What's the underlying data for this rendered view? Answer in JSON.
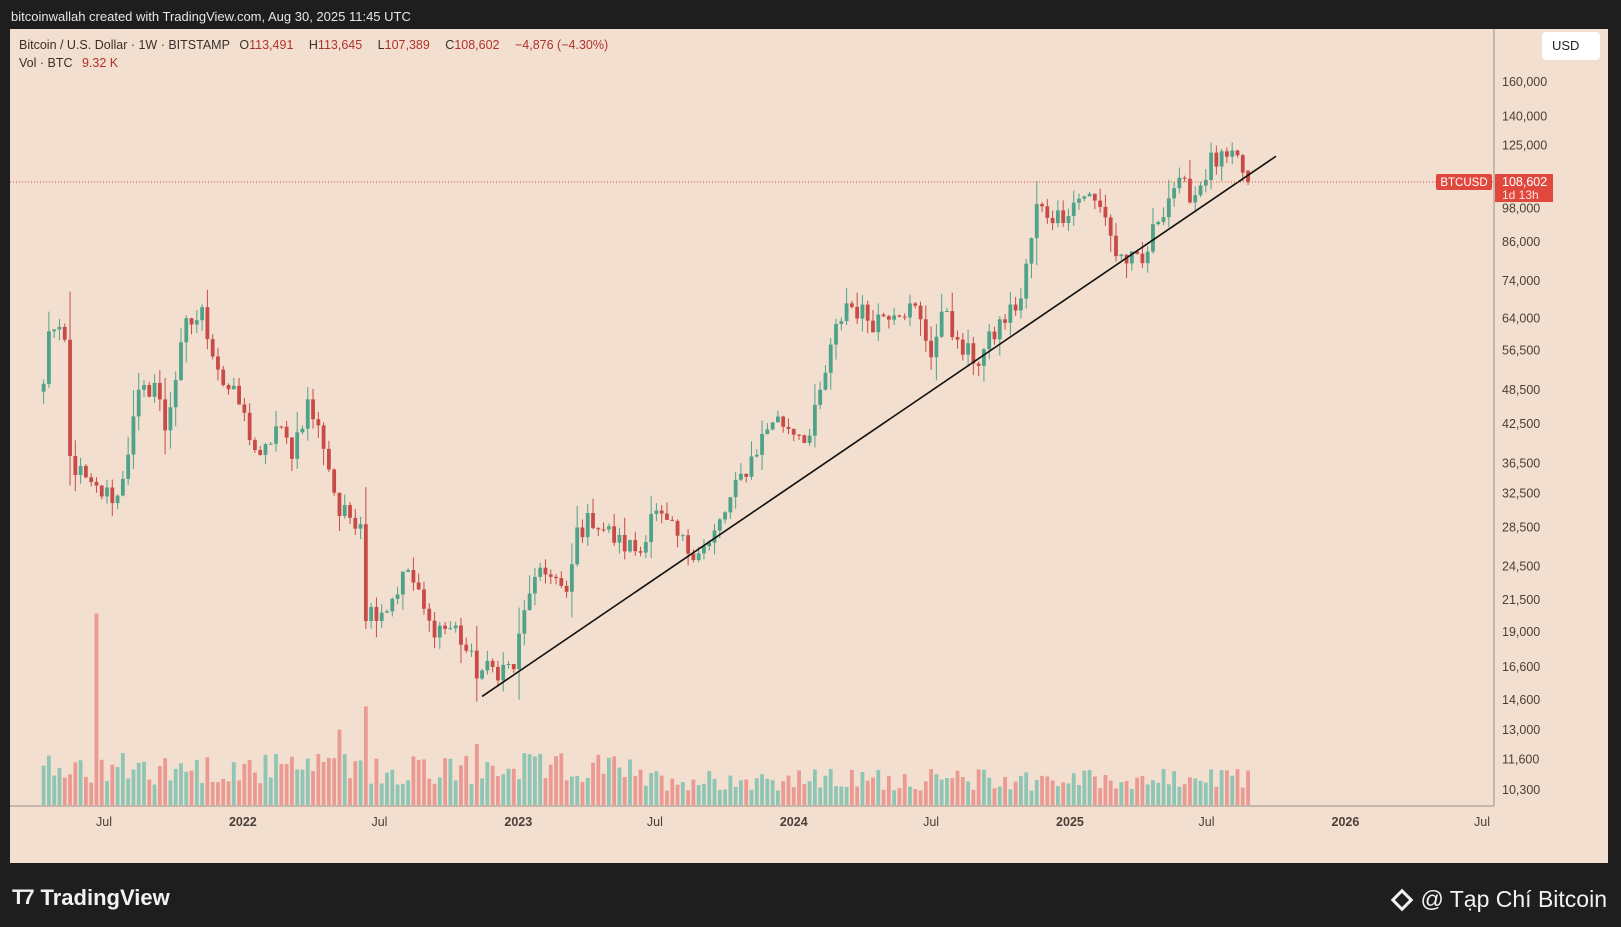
{
  "caption": "bitcoinwallah created with TradingView.com, Aug 30, 2025 11:45 UTC",
  "legend": {
    "symbol": "Bitcoin / U.S. Dollar · 1W · BITSTAMP",
    "open_label": "O",
    "open": "113,491",
    "high_label": "H",
    "high": "113,645",
    "low_label": "L",
    "low": "107,389",
    "close_label": "C",
    "close": "108,602",
    "change": "−4,876 (−4.30%)",
    "vol_label": "Vol · BTC",
    "vol_value": "9.32 K"
  },
  "currency_button": "USD",
  "logo_text": "TradingView",
  "watermark": "@ Tạp Chí Bitcoin",
  "colors": {
    "up": "#4fa38b",
    "down": "#c94b47",
    "vol_up": "#8fc5b4",
    "vol_down": "#eb9a93",
    "background": "#f2dfcf",
    "price_tag": "#e0483e"
  },
  "chart_data": {
    "type": "candlestick",
    "title": "Bitcoin / U.S. Dollar · 1W · BITSTAMP",
    "scale": "log",
    "y_ticks": [
      160000,
      140000,
      125000,
      98000,
      86000,
      74000,
      64000,
      56500,
      48500,
      42500,
      36500,
      32500,
      28500,
      24500,
      21500,
      19000,
      16600,
      14600,
      13000,
      11600,
      10300
    ],
    "y_tick_labels": [
      "160,000",
      "140,000",
      "125,000",
      "98,000",
      "86,000",
      "74,000",
      "64,000",
      "56,500",
      "48,500",
      "42,500",
      "36,500",
      "32,500",
      "28,500",
      "24,500",
      "21,500",
      "19,000",
      "16,600",
      "14,600",
      "13,000",
      "11,600",
      "10,300"
    ],
    "x_ticks": [
      {
        "label": "Jul",
        "date": "2021-07-01"
      },
      {
        "label": "2022",
        "date": "2022-01-01"
      },
      {
        "label": "Jul",
        "date": "2022-07-01"
      },
      {
        "label": "2023",
        "date": "2023-01-01"
      },
      {
        "label": "Jul",
        "date": "2023-07-01"
      },
      {
        "label": "2024",
        "date": "2024-01-01"
      },
      {
        "label": "Jul",
        "date": "2024-07-01"
      },
      {
        "label": "2025",
        "date": "2025-01-01"
      },
      {
        "label": "Jul",
        "date": "2025-07-01"
      },
      {
        "label": "2026",
        "date": "2026-01-01"
      },
      {
        "label": "Jul",
        "date": "2026-07-01"
      }
    ],
    "current_price": {
      "symbol": "BTCUSD",
      "label": "108,602",
      "value": 108602,
      "countdown": "1d 13h"
    },
    "trendline": {
      "start": {
        "date": "2022-11-14",
        "price": 14800
      },
      "end": {
        "date": "2025-10-01",
        "price": 120000
      }
    },
    "anchors": [
      {
        "date": "2021-04-12",
        "price": 49000
      },
      {
        "date": "2021-04-19",
        "price": 62000
      },
      {
        "date": "2021-05-10",
        "price": 58000
      },
      {
        "date": "2021-05-17",
        "price": 37000
      },
      {
        "date": "2021-06-14",
        "price": 33000
      },
      {
        "date": "2021-07-19",
        "price": 32000
      },
      {
        "date": "2021-08-16",
        "price": 47000
      },
      {
        "date": "2021-09-06",
        "price": 50000
      },
      {
        "date": "2021-09-20",
        "price": 42000
      },
      {
        "date": "2021-10-18",
        "price": 62000
      },
      {
        "date": "2021-11-08",
        "price": 65000
      },
      {
        "date": "2021-12-06",
        "price": 50000
      },
      {
        "date": "2021-12-27",
        "price": 46000
      },
      {
        "date": "2022-01-24",
        "price": 36500
      },
      {
        "date": "2022-02-14",
        "price": 42000
      },
      {
        "date": "2022-03-07",
        "price": 38500
      },
      {
        "date": "2022-03-28",
        "price": 46000
      },
      {
        "date": "2022-04-18",
        "price": 39500
      },
      {
        "date": "2022-05-09",
        "price": 30000
      },
      {
        "date": "2022-06-06",
        "price": 29500
      },
      {
        "date": "2022-06-13",
        "price": 20500
      },
      {
        "date": "2022-07-11",
        "price": 21000
      },
      {
        "date": "2022-08-08",
        "price": 24200
      },
      {
        "date": "2022-09-05",
        "price": 19500
      },
      {
        "date": "2022-10-10",
        "price": 19200
      },
      {
        "date": "2022-11-07",
        "price": 16300
      },
      {
        "date": "2022-12-26",
        "price": 16600
      },
      {
        "date": "2023-01-16",
        "price": 22500
      },
      {
        "date": "2023-02-13",
        "price": 24200
      },
      {
        "date": "2023-03-06",
        "price": 21500
      },
      {
        "date": "2023-03-20",
        "price": 28000
      },
      {
        "date": "2023-04-10",
        "price": 29500
      },
      {
        "date": "2023-05-15",
        "price": 26800
      },
      {
        "date": "2023-06-12",
        "price": 26000
      },
      {
        "date": "2023-06-26",
        "price": 30500
      },
      {
        "date": "2023-08-14",
        "price": 26200
      },
      {
        "date": "2023-09-11",
        "price": 26500
      },
      {
        "date": "2023-10-23",
        "price": 34500
      },
      {
        "date": "2023-12-04",
        "price": 43500
      },
      {
        "date": "2024-01-22",
        "price": 40500
      },
      {
        "date": "2024-02-26",
        "price": 61000
      },
      {
        "date": "2024-03-11",
        "price": 68000
      },
      {
        "date": "2024-04-15",
        "price": 63500
      },
      {
        "date": "2024-05-13",
        "price": 67000
      },
      {
        "date": "2024-06-10",
        "price": 66000
      },
      {
        "date": "2024-07-01",
        "price": 56500
      },
      {
        "date": "2024-07-22",
        "price": 67000
      },
      {
        "date": "2024-08-05",
        "price": 57000
      },
      {
        "date": "2024-09-02",
        "price": 54500
      },
      {
        "date": "2024-09-30",
        "price": 62500
      },
      {
        "date": "2024-10-28",
        "price": 69000
      },
      {
        "date": "2024-11-18",
        "price": 98000
      },
      {
        "date": "2024-12-16",
        "price": 95000
      },
      {
        "date": "2025-01-20",
        "price": 104000
      },
      {
        "date": "2025-02-17",
        "price": 96000
      },
      {
        "date": "2025-03-03",
        "price": 82000
      },
      {
        "date": "2025-04-07",
        "price": 78500
      },
      {
        "date": "2025-04-28",
        "price": 95000
      },
      {
        "date": "2025-05-19",
        "price": 107000
      },
      {
        "date": "2025-06-16",
        "price": 104000
      },
      {
        "date": "2025-07-07",
        "price": 117500
      },
      {
        "date": "2025-08-11",
        "price": 117500
      },
      {
        "date": "2025-08-25",
        "price": 108602
      }
    ],
    "volume_spikes": [
      {
        "date": "2021-06-21",
        "volume": 3.3
      },
      {
        "date": "2022-06-13",
        "volume": 1.7
      },
      {
        "date": "2022-05-09",
        "volume": 1.3
      },
      {
        "date": "2022-11-07",
        "volume": 1.05
      }
    ]
  }
}
